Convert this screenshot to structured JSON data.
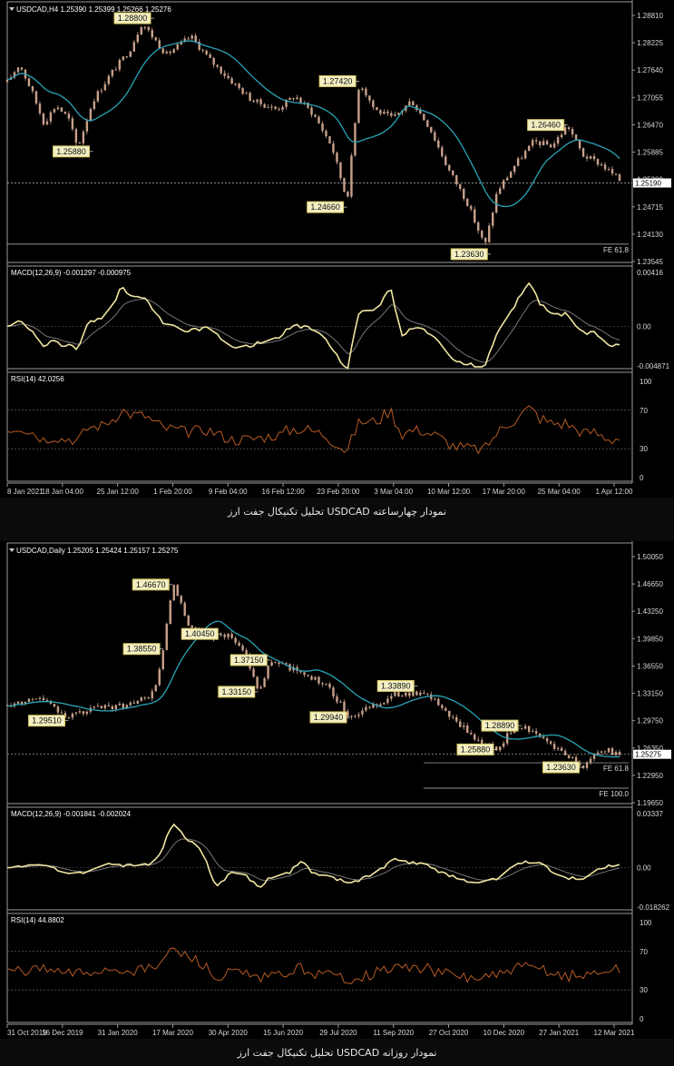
{
  "captions": {
    "h4": "تحلیل تکنیکال جفت ارز USDCAD نمودار چهارساعته",
    "daily": "تحلیل تکنیکال جفت ارز USDCAD نمودار روزانه"
  },
  "colors": {
    "background": "#000000",
    "candle": "#c8a08a",
    "ma": "#2aa3b8",
    "macd": "#f0e6a0",
    "macd_signal": "#777777",
    "rsi": "#b85a24",
    "label_bg": "#f3efc3",
    "label_border": "#d4c45c"
  },
  "chart_data": [
    {
      "type": "candlestick",
      "header": "USDCAD,H4  1.25390 1.25399 1.25266 1.25276",
      "price_axis": [
        "1.28810",
        "1.28225",
        "1.27640",
        "1.27055",
        "1.26470",
        "1.25885",
        "1.25300",
        "1.24715",
        "1.24130",
        "1.23545"
      ],
      "ylim": [
        1.2337,
        1.29
      ],
      "current_price": "1.25190",
      "current_price_value": 1.2519,
      "fe_label": "FE 61.8",
      "fe_level": 1.2385,
      "x_labels": [
        "8 Jan 2021",
        "18 Jan 04:00",
        "25 Jan 12:00",
        "1 Feb 20:00",
        "9 Feb 04:00",
        "16 Feb 12:00",
        "23 Feb 20:00",
        "3 Mar 04:00",
        "10 Mar 12:00",
        "17 Mar 20:00",
        "25 Mar 04:00",
        "1 Apr 12:00"
      ],
      "price_path": [
        [
          0,
          1.274
        ],
        [
          0.02,
          1.278
        ],
        [
          0.04,
          1.272
        ],
        [
          0.06,
          1.265
        ],
        [
          0.08,
          1.269
        ],
        [
          0.1,
          1.266
        ],
        [
          0.115,
          1.2595
        ],
        [
          0.14,
          1.27
        ],
        [
          0.17,
          1.276
        ],
        [
          0.2,
          1.281
        ],
        [
          0.22,
          1.287
        ],
        [
          0.26,
          1.28
        ],
        [
          0.3,
          1.284
        ],
        [
          0.33,
          1.279
        ],
        [
          0.36,
          1.275
        ],
        [
          0.4,
          1.27
        ],
        [
          0.44,
          1.268
        ],
        [
          0.47,
          1.271
        ],
        [
          0.5,
          1.267
        ],
        [
          0.53,
          1.26
        ],
        [
          0.555,
          1.248
        ],
        [
          0.575,
          1.2742
        ],
        [
          0.6,
          1.268
        ],
        [
          0.63,
          1.266
        ],
        [
          0.66,
          1.27
        ],
        [
          0.69,
          1.264
        ],
        [
          0.72,
          1.255
        ],
        [
          0.75,
          1.248
        ],
        [
          0.78,
          1.238
        ],
        [
          0.8,
          1.25
        ],
        [
          0.83,
          1.256
        ],
        [
          0.86,
          1.261
        ],
        [
          0.89,
          1.26
        ],
        [
          0.915,
          1.2646
        ],
        [
          0.94,
          1.258
        ],
        [
          0.97,
          1.256
        ],
        [
          1.0,
          1.2525
        ]
      ],
      "annotations": [
        {
          "text": "1.28800",
          "x": 0.24,
          "price": 1.288,
          "side": "left"
        },
        {
          "text": "1.25880",
          "x": 0.14,
          "price": 1.2588,
          "side": "left"
        },
        {
          "text": "1.27420",
          "x": 0.575,
          "price": 1.2742,
          "side": "left"
        },
        {
          "text": "1.24660",
          "x": 0.555,
          "price": 1.2466,
          "side": "left"
        },
        {
          "text": "1.23630",
          "x": 0.79,
          "price": 1.2363,
          "side": "left"
        },
        {
          "text": "1.26460",
          "x": 0.915,
          "price": 1.2646,
          "side": "left"
        }
      ],
      "macd": {
        "header": "MACD(12,26,9) -0.001297 -0.000975",
        "top": "0.00416",
        "mid": "0.00",
        "bottom": "-0.004871"
      },
      "rsi": {
        "header": "RSI(14) 42.0256",
        "levels": [
          "100",
          "70",
          "30",
          "0"
        ]
      }
    },
    {
      "type": "candlestick",
      "header": "USDCAD,Daily  1.25205 1.25424 1.25157 1.25275",
      "price_axis": [
        "1.50050",
        "1.46650",
        "1.43250",
        "1.39850",
        "1.36550",
        "1.33150",
        "1.29750",
        "1.26350",
        "1.22950",
        "1.19650"
      ],
      "ylim": [
        1.186,
        1.51
      ],
      "current_price": "1.25275",
      "current_price_value": 1.25275,
      "fe_labels": [
        {
          "text": "FE 61.8",
          "level": 1.242
        },
        {
          "text": "FE 100.0",
          "level": 1.21
        }
      ],
      "x_labels": [
        "31 Oct 2019",
        "16 Dec 2019",
        "31 Jan 2020",
        "17 Mar 2020",
        "30 Apr 2020",
        "15 Jun 2020",
        "29 Jul 2020",
        "11 Sep 2020",
        "27 Oct 2020",
        "10 Dec 2020",
        "27 Jan 2021",
        "12 Mar 2021"
      ],
      "price_path": [
        [
          0,
          1.315
        ],
        [
          0.05,
          1.325
        ],
        [
          0.1,
          1.3
        ],
        [
          0.14,
          1.31
        ],
        [
          0.2,
          1.315
        ],
        [
          0.24,
          1.33
        ],
        [
          0.255,
          1.3855
        ],
        [
          0.27,
          1.4667
        ],
        [
          0.3,
          1.41
        ],
        [
          0.33,
          1.4
        ],
        [
          0.36,
          1.405
        ],
        [
          0.39,
          1.38
        ],
        [
          0.41,
          1.3315
        ],
        [
          0.43,
          1.37
        ],
        [
          0.47,
          1.36
        ],
        [
          0.52,
          1.34
        ],
        [
          0.56,
          1.3
        ],
        [
          0.6,
          1.315
        ],
        [
          0.64,
          1.33
        ],
        [
          0.67,
          1.33
        ],
        [
          0.7,
          1.32
        ],
        [
          0.73,
          1.295
        ],
        [
          0.77,
          1.27
        ],
        [
          0.8,
          1.2588
        ],
        [
          0.82,
          1.28
        ],
        [
          0.84,
          1.2889
        ],
        [
          0.88,
          1.27
        ],
        [
          0.92,
          1.25
        ],
        [
          0.94,
          1.2363
        ],
        [
          0.97,
          1.26
        ],
        [
          1.0,
          1.2527
        ]
      ],
      "annotations": [
        {
          "text": "1.46670",
          "x": 0.27,
          "price": 1.4667,
          "side": "left"
        },
        {
          "text": "1.38550",
          "x": 0.255,
          "price": 1.3855,
          "side": "left"
        },
        {
          "text": "1.29510",
          "x": 0.1,
          "price": 1.2951,
          "side": "left"
        },
        {
          "text": "1.33150",
          "x": 0.41,
          "price": 1.3315,
          "side": "left"
        },
        {
          "text": "1.37150",
          "x": 0.43,
          "price": 1.3715,
          "side": "left"
        },
        {
          "text": "1.29940",
          "x": 0.56,
          "price": 1.2994,
          "side": "left"
        },
        {
          "text": "1.33890",
          "x": 0.67,
          "price": 1.3389,
          "side": "left"
        },
        {
          "text": "1.28890",
          "x": 0.84,
          "price": 1.2889,
          "side": "left"
        },
        {
          "text": "1.25880",
          "x": 0.8,
          "price": 1.2588,
          "side": "left"
        },
        {
          "text": "1.23630",
          "x": 0.94,
          "price": 1.2363,
          "side": "left"
        },
        {
          "text": "1.40450",
          "x": 0.35,
          "price": 1.4045,
          "side": "left"
        }
      ],
      "macd": {
        "header": "MACD(12,26,9) -0.001841 -0.002024",
        "top": "0.03337",
        "mid": "0.00",
        "bottom": "-0.018262"
      },
      "rsi": {
        "header": "RSI(14) 44.8802",
        "levels": [
          "100",
          "70",
          "30",
          "0"
        ]
      }
    }
  ]
}
